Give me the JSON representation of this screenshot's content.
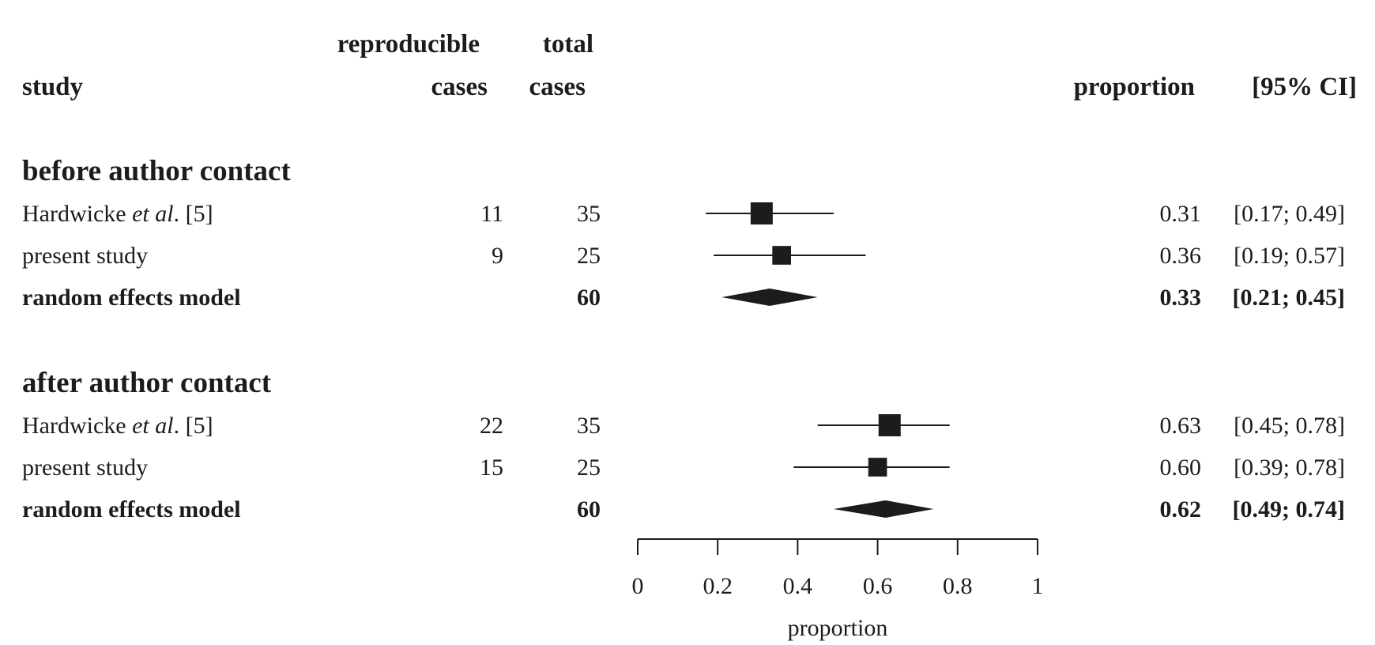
{
  "headers": {
    "study": "study",
    "reproducible_line1": "reproducible",
    "reproducible_line2": "cases",
    "total_line1": "total",
    "total_line2": "cases",
    "proportion": "proportion",
    "ci": "[95% CI]"
  },
  "chart_data": {
    "type": "forest",
    "xlabel": "proportion",
    "xlim": [
      0,
      1
    ],
    "xticks": [
      0,
      0.2,
      0.4,
      0.6,
      0.8,
      1
    ],
    "xtick_labels": [
      "0",
      "0.2",
      "0.4",
      "0.6",
      "0.8",
      "1"
    ],
    "groups": [
      {
        "label": "before author contact",
        "studies": [
          {
            "author": "Hardwicke",
            "etal": "et al",
            "suffix": ". [5]",
            "reproducible": "11",
            "total": "35",
            "est": 0.31,
            "lo": 0.17,
            "hi": 0.49,
            "weight": 35,
            "prop": "0.31",
            "ci": "[0.17; 0.49]"
          },
          {
            "label": "present study",
            "reproducible": "9",
            "total": "25",
            "est": 0.36,
            "lo": 0.19,
            "hi": 0.57,
            "weight": 25,
            "prop": "0.36",
            "ci": "[0.19; 0.57]"
          }
        ],
        "summary": {
          "label": "random effects model",
          "total": "60",
          "est": 0.33,
          "lo": 0.21,
          "hi": 0.45,
          "prop": "0.33",
          "ci": "[0.21; 0.45]"
        }
      },
      {
        "label": "after author contact",
        "studies": [
          {
            "author": "Hardwicke",
            "etal": "et al",
            "suffix": ". [5]",
            "reproducible": "22",
            "total": "35",
            "est": 0.63,
            "lo": 0.45,
            "hi": 0.78,
            "weight": 35,
            "prop": "0.63",
            "ci": "[0.45; 0.78]"
          },
          {
            "label": "present study",
            "reproducible": "15",
            "total": "25",
            "est": 0.6,
            "lo": 0.39,
            "hi": 0.78,
            "weight": 25,
            "prop": "0.60",
            "ci": "[0.39; 0.78]"
          }
        ],
        "summary": {
          "label": "random effects model",
          "total": "60",
          "est": 0.62,
          "lo": 0.49,
          "hi": 0.74,
          "prop": "0.62",
          "ci": "[0.49; 0.74]"
        }
      }
    ]
  }
}
